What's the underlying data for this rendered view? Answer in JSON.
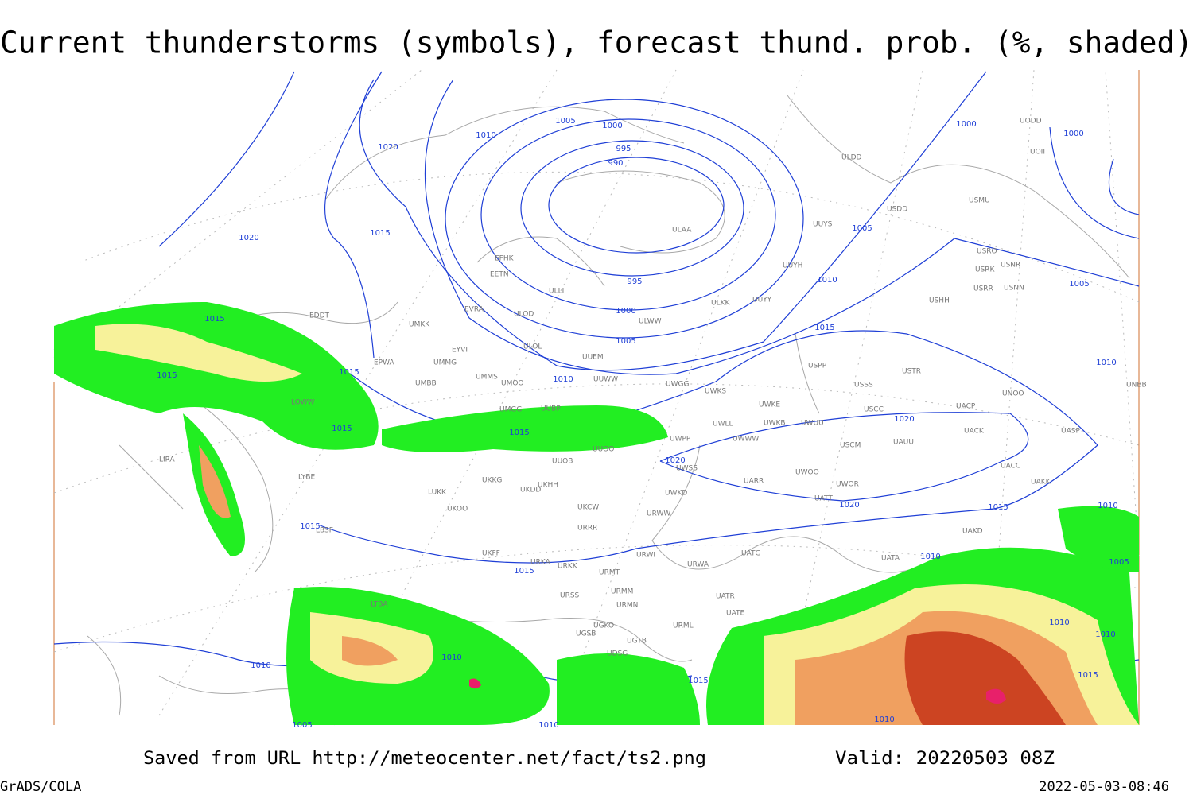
{
  "title": "Current thunderstorms (symbols), forecast thund. prob. (%, shaded)",
  "isobar_labels": [
    "1020",
    "1010",
    "1005",
    "1000",
    "995",
    "990",
    "1020",
    "1015",
    "995",
    "1000",
    "1005",
    "1010",
    "1015",
    "1005",
    "1010",
    "1000",
    "1000",
    "1005",
    "1015",
    "1015",
    "1015",
    "1015",
    "1015",
    "1020",
    "1020",
    "1020",
    "1015",
    "1015",
    "1015",
    "1010",
    "1010",
    "1010",
    "1005",
    "1010",
    "1010",
    "1015",
    "1010",
    "1010",
    "1015",
    "1010",
    "1005",
    "1010"
  ],
  "stations": [
    "ULDD",
    "UODD",
    "UOII",
    "USDD",
    "USMU",
    "UUYS",
    "ULAA",
    "UUYH",
    "USRO",
    "USRK",
    "USNR",
    "USRR",
    "USNN",
    "USHH",
    "UUYY",
    "ULKK",
    "EFHK",
    "EETN",
    "ULLI",
    "EVRA",
    "ULOD",
    "ULWW",
    "UMKK",
    "ULOL",
    "UUEM",
    "EYVI",
    "UMMG",
    "EPWA",
    "UMMS",
    "UMOO",
    "UUWW",
    "UWGG",
    "UWKS",
    "UMBB",
    "USPP",
    "USSS",
    "USTR",
    "UNOO",
    "UNBB",
    "UWKE",
    "USCC",
    "UACP",
    "UMGG",
    "UUBP",
    "UWLL",
    "UWKB",
    "UWUU",
    "USCM",
    "UAUU",
    "UACK",
    "UASP",
    "UWPP",
    "UWWW",
    "UUOO",
    "UUOB",
    "UWSS",
    "UACC",
    "UARR",
    "UWOO",
    "UWOR",
    "UATT",
    "UAKK",
    "UKHH",
    "UKDD",
    "UKKG",
    "LUKK",
    "UKOO",
    "UKCW",
    "UWKD",
    "URWW",
    "URRR",
    "UAKD",
    "UKFF",
    "URKA",
    "URKK",
    "URWI",
    "URWA",
    "UATG",
    "UATA",
    "URMT",
    "URMM",
    "URSS",
    "URMN",
    "UATE",
    "UATR",
    "UGKO",
    "UGSB",
    "UGTB",
    "URML",
    "UDSG",
    "EDDT",
    "LOWW",
    "LYBE",
    "LBSF",
    "LTBA",
    "LIRA"
  ],
  "footer": {
    "source": "Saved from URL http://meteocenter.net/fact/ts2.png",
    "valid": "Valid: 20220503 08Z",
    "software": "GrADS/COLA",
    "timestamp": "2022-05-03-08:46"
  }
}
